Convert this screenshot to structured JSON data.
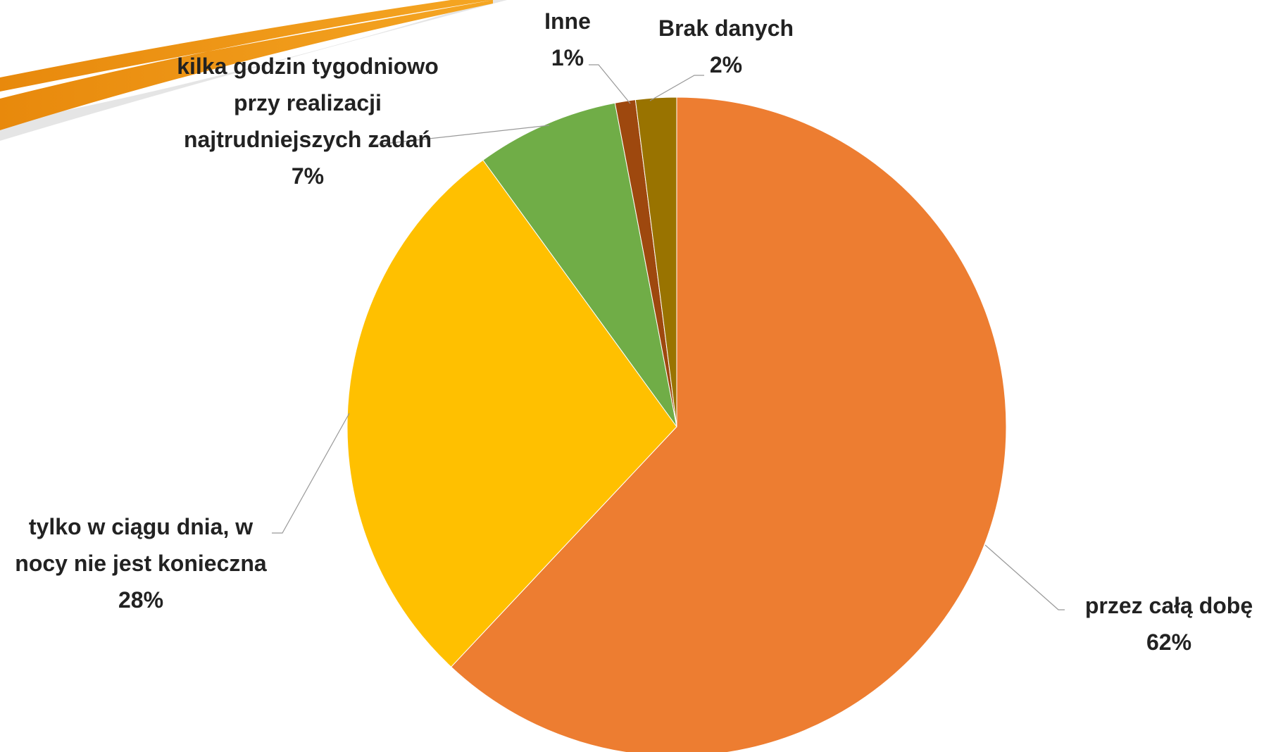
{
  "chart_data": {
    "type": "pie",
    "categories": [
      "przez całą dobę",
      "tylko w ciągu dnia, w nocy nie jest konieczna",
      "kilka godzin tygodniowo przy realizacji najtrudniejszych zadań",
      "Inne",
      "Brak danych"
    ],
    "values": [
      62,
      28,
      7,
      1,
      2
    ],
    "value_labels": [
      "62%",
      "28%",
      "7%",
      "1%",
      "2%"
    ],
    "colors": [
      "#ED7D31",
      "#FFC000",
      "#70AD47",
      "#9E480E",
      "#997300"
    ]
  }
}
